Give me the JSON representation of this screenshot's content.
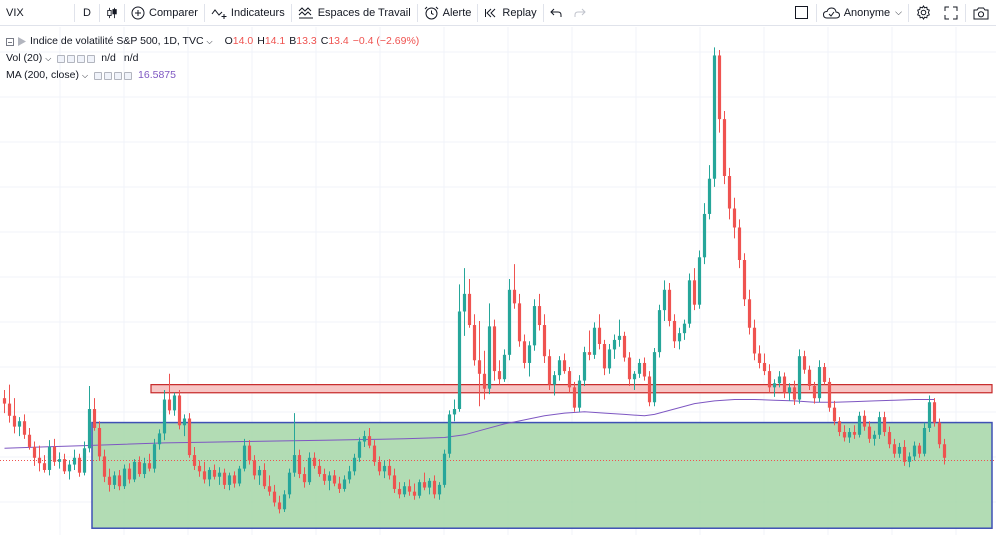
{
  "toolbar": {
    "symbol": "VIX",
    "interval": "D",
    "compare_label": "Comparer",
    "indicators_label": "Indicateurs",
    "workspaces_label": "Espaces de Travail",
    "alert_label": "Alerte",
    "replay_label": "Replay",
    "user_label": "Anonyme"
  },
  "legend": {
    "title": "Indice de volatilité S&P 500, 1D, TVC",
    "open_key": "O",
    "open_val": "14.0",
    "high_key": "H",
    "high_val": "14.1",
    "low_key": "B",
    "low_val": "13.3",
    "close_key": "C",
    "close_val": "13.4",
    "change": "−0.4 (−2.69%)",
    "vol_label": "Vol (20)",
    "vol_val1": "n/d",
    "vol_val2": "n/d",
    "ma_label": "MA (200, close)",
    "ma_val": "16.5875"
  },
  "colors": {
    "up": "#26a69a",
    "down": "#ef5350",
    "ma": "#7e57c2",
    "resistance_fill": "#f7c6c5",
    "resistance_stroke": "#c62828",
    "support_fill": "#a5d6a7",
    "support_stroke": "#3f51b5"
  },
  "chart_data": {
    "type": "candlestick",
    "symbol": "VIX",
    "ylim": [
      10.5,
      48
    ],
    "zones": {
      "resistance": [
        21.0,
        21.6
      ],
      "support": [
        11.0,
        18.8
      ]
    },
    "last_price_line": 16.0,
    "candles": [
      [
        20.6,
        21.2,
        19.5,
        20.2
      ],
      [
        20.2,
        21.6,
        18.8,
        19.3
      ],
      [
        19.3,
        20.6,
        18.0,
        18.5
      ],
      [
        18.5,
        19.2,
        17.8,
        18.9
      ],
      [
        18.9,
        19.4,
        17.6,
        17.9
      ],
      [
        17.9,
        18.4,
        16.8,
        17.0
      ],
      [
        17.0,
        17.4,
        15.6,
        16.2
      ],
      [
        16.2,
        17.1,
        15.2,
        15.8
      ],
      [
        15.8,
        16.4,
        15.1,
        15.3
      ],
      [
        15.3,
        17.5,
        14.9,
        17.0
      ],
      [
        17.0,
        17.6,
        15.6,
        15.9
      ],
      [
        15.9,
        16.6,
        15.4,
        16.1
      ],
      [
        16.1,
        16.5,
        15.0,
        15.2
      ],
      [
        15.2,
        16.0,
        14.6,
        15.7
      ],
      [
        15.7,
        16.8,
        15.3,
        16.2
      ],
      [
        16.2,
        16.5,
        14.8,
        15.1
      ],
      [
        15.1,
        17.4,
        14.9,
        16.9
      ],
      [
        16.9,
        21.5,
        16.6,
        19.8
      ],
      [
        19.8,
        20.6,
        18.2,
        18.4
      ],
      [
        18.4,
        18.9,
        16.0,
        16.3
      ],
      [
        16.3,
        16.8,
        14.4,
        14.8
      ],
      [
        14.8,
        15.4,
        13.7,
        14.2
      ],
      [
        14.2,
        15.2,
        13.9,
        14.9
      ],
      [
        14.9,
        15.3,
        13.8,
        14.1
      ],
      [
        14.1,
        15.7,
        13.9,
        15.4
      ],
      [
        15.4,
        15.8,
        14.3,
        14.6
      ],
      [
        14.6,
        16.1,
        14.4,
        15.9
      ],
      [
        15.9,
        16.3,
        14.8,
        15.0
      ],
      [
        15.0,
        16.2,
        14.7,
        15.8
      ],
      [
        15.8,
        16.5,
        15.2,
        15.4
      ],
      [
        15.4,
        17.6,
        15.1,
        17.2
      ],
      [
        17.2,
        18.3,
        16.8,
        18.0
      ],
      [
        18.0,
        21.2,
        17.5,
        20.5
      ],
      [
        20.5,
        22.4,
        19.4,
        19.7
      ],
      [
        19.7,
        21.0,
        19.3,
        20.8
      ],
      [
        20.8,
        21.2,
        18.3,
        18.6
      ],
      [
        18.6,
        19.4,
        17.8,
        19.1
      ],
      [
        19.1,
        19.5,
        16.2,
        16.4
      ],
      [
        16.4,
        17.0,
        15.3,
        15.6
      ],
      [
        15.6,
        16.0,
        14.8,
        15.2
      ],
      [
        15.2,
        15.9,
        14.3,
        14.6
      ],
      [
        14.6,
        15.5,
        14.1,
        15.3
      ],
      [
        15.3,
        15.7,
        14.6,
        14.8
      ],
      [
        14.8,
        15.5,
        14.2,
        15.1
      ],
      [
        15.1,
        15.4,
        13.9,
        14.2
      ],
      [
        14.2,
        15.1,
        13.8,
        14.9
      ],
      [
        14.9,
        15.2,
        14.0,
        14.3
      ],
      [
        14.3,
        15.6,
        14.1,
        15.4
      ],
      [
        15.4,
        17.6,
        15.2,
        17.1
      ],
      [
        17.1,
        17.5,
        15.7,
        16.0
      ],
      [
        16.0,
        16.4,
        14.6,
        14.9
      ],
      [
        14.9,
        15.6,
        14.2,
        15.3
      ],
      [
        15.3,
        15.8,
        13.9,
        14.1
      ],
      [
        14.1,
        14.9,
        13.4,
        13.7
      ],
      [
        13.7,
        14.2,
        12.6,
        12.9
      ],
      [
        12.9,
        13.4,
        12.1,
        12.4
      ],
      [
        12.4,
        13.8,
        12.2,
        13.5
      ],
      [
        13.5,
        15.4,
        13.2,
        15.1
      ],
      [
        15.1,
        19.5,
        14.8,
        16.4
      ],
      [
        16.4,
        16.8,
        14.7,
        15.0
      ],
      [
        15.0,
        15.5,
        14.0,
        14.4
      ],
      [
        14.4,
        16.6,
        14.2,
        16.2
      ],
      [
        16.2,
        16.6,
        15.4,
        15.6
      ],
      [
        15.6,
        16.1,
        14.8,
        15.0
      ],
      [
        15.0,
        15.4,
        14.2,
        14.5
      ],
      [
        14.5,
        15.2,
        13.8,
        14.9
      ],
      [
        14.9,
        15.3,
        14.1,
        14.3
      ],
      [
        14.3,
        14.8,
        13.6,
        13.9
      ],
      [
        13.9,
        14.9,
        13.7,
        14.6
      ],
      [
        14.6,
        15.6,
        14.3,
        15.2
      ],
      [
        15.2,
        16.5,
        14.9,
        16.2
      ],
      [
        16.2,
        17.7,
        15.9,
        17.4
      ],
      [
        17.4,
        18.2,
        17.0,
        17.8
      ],
      [
        17.8,
        18.4,
        16.9,
        17.1
      ],
      [
        17.1,
        17.5,
        15.6,
        15.9
      ],
      [
        15.9,
        16.3,
        14.9,
        15.2
      ],
      [
        15.2,
        16.0,
        14.7,
        15.6
      ],
      [
        15.6,
        16.1,
        14.6,
        14.9
      ],
      [
        14.9,
        15.4,
        13.6,
        13.9
      ],
      [
        13.9,
        14.4,
        13.2,
        13.5
      ],
      [
        13.5,
        14.4,
        13.3,
        14.1
      ],
      [
        14.1,
        14.6,
        13.4,
        13.7
      ],
      [
        13.7,
        14.3,
        13.1,
        13.4
      ],
      [
        13.4,
        14.6,
        13.2,
        14.4
      ],
      [
        14.4,
        15.1,
        13.8,
        14.0
      ],
      [
        14.0,
        14.7,
        13.5,
        14.5
      ],
      [
        14.5,
        14.9,
        13.2,
        13.5
      ],
      [
        13.5,
        14.4,
        13.1,
        14.2
      ],
      [
        14.2,
        16.8,
        14.0,
        16.5
      ],
      [
        16.5,
        19.7,
        16.2,
        19.4
      ],
      [
        19.4,
        20.5,
        18.9,
        19.8
      ],
      [
        19.8,
        29.0,
        19.6,
        27.0
      ],
      [
        27.0,
        30.2,
        25.2,
        28.3
      ],
      [
        28.3,
        29.4,
        25.8,
        26.0
      ],
      [
        26.0,
        26.8,
        23.0,
        23.4
      ],
      [
        23.4,
        26.3,
        20.0,
        22.4
      ],
      [
        22.4,
        24.1,
        20.5,
        21.3
      ],
      [
        21.3,
        27.6,
        20.9,
        25.9
      ],
      [
        25.9,
        26.4,
        21.9,
        22.6
      ],
      [
        22.6,
        23.4,
        21.6,
        22.0
      ],
      [
        22.0,
        24.2,
        21.8,
        23.8
      ],
      [
        23.8,
        29.4,
        23.4,
        28.6
      ],
      [
        28.6,
        30.5,
        27.2,
        27.6
      ],
      [
        27.6,
        28.3,
        24.4,
        24.8
      ],
      [
        24.8,
        25.3,
        22.8,
        23.2
      ],
      [
        23.2,
        24.8,
        22.2,
        24.5
      ],
      [
        24.5,
        27.9,
        24.1,
        27.4
      ],
      [
        27.4,
        28.3,
        25.6,
        26.0
      ],
      [
        26.0,
        26.8,
        23.2,
        23.7
      ],
      [
        23.7,
        24.2,
        21.2,
        21.6
      ],
      [
        21.6,
        22.6,
        20.8,
        22.3
      ],
      [
        22.3,
        23.7,
        21.9,
        23.4
      ],
      [
        23.4,
        23.9,
        22.4,
        22.6
      ],
      [
        22.6,
        22.9,
        21.0,
        21.4
      ],
      [
        21.4,
        21.8,
        19.6,
        19.9
      ],
      [
        19.9,
        22.3,
        19.6,
        21.9
      ],
      [
        21.9,
        24.4,
        21.5,
        24.0
      ],
      [
        24.0,
        25.6,
        23.4,
        23.8
      ],
      [
        23.8,
        26.2,
        23.5,
        25.8
      ],
      [
        25.8,
        26.8,
        24.2,
        24.6
      ],
      [
        24.6,
        24.9,
        22.3,
        22.8
      ],
      [
        22.8,
        24.6,
        22.4,
        24.2
      ],
      [
        24.2,
        25.3,
        23.5,
        24.9
      ],
      [
        24.9,
        26.4,
        24.4,
        25.2
      ],
      [
        25.2,
        25.5,
        23.3,
        23.6
      ],
      [
        23.6,
        24.0,
        21.5,
        22.0
      ],
      [
        22.0,
        22.6,
        21.2,
        22.4
      ],
      [
        22.4,
        23.5,
        22.1,
        23.2
      ],
      [
        23.2,
        23.6,
        21.9,
        22.2
      ],
      [
        22.2,
        22.6,
        20.0,
        20.3
      ],
      [
        20.3,
        24.3,
        20.0,
        24.0
      ],
      [
        24.0,
        27.5,
        23.6,
        27.1
      ],
      [
        27.1,
        29.3,
        26.3,
        28.6
      ],
      [
        28.6,
        29.1,
        25.9,
        26.3
      ],
      [
        26.3,
        26.8,
        24.3,
        24.8
      ],
      [
        24.8,
        25.8,
        24.2,
        25.4
      ],
      [
        25.4,
        26.4,
        24.9,
        26.1
      ],
      [
        26.1,
        29.8,
        25.8,
        29.3
      ],
      [
        29.3,
        30.2,
        27.1,
        27.5
      ],
      [
        27.5,
        31.5,
        27.2,
        31.0
      ],
      [
        31.0,
        35.0,
        30.5,
        34.2
      ],
      [
        34.2,
        37.8,
        33.8,
        36.8
      ],
      [
        36.8,
        46.5,
        36.2,
        45.9
      ],
      [
        45.9,
        46.3,
        40.2,
        41.2
      ],
      [
        41.2,
        41.8,
        36.4,
        37.0
      ],
      [
        37.0,
        37.6,
        33.8,
        34.6
      ],
      [
        34.6,
        35.4,
        32.4,
        33.2
      ],
      [
        33.2,
        33.8,
        30.2,
        30.8
      ],
      [
        30.8,
        31.3,
        27.4,
        27.9
      ],
      [
        27.9,
        28.6,
        25.3,
        25.8
      ],
      [
        25.8,
        26.4,
        23.4,
        23.9
      ],
      [
        23.9,
        24.5,
        22.8,
        23.2
      ],
      [
        23.2,
        23.9,
        22.3,
        22.6
      ],
      [
        22.6,
        23.1,
        21.0,
        21.4
      ],
      [
        21.4,
        22.0,
        20.7,
        21.7
      ],
      [
        21.7,
        22.6,
        21.4,
        22.2
      ],
      [
        22.2,
        22.5,
        20.6,
        21.0
      ],
      [
        21.0,
        21.7,
        20.4,
        21.4
      ],
      [
        21.4,
        21.9,
        20.1,
        20.5
      ],
      [
        20.5,
        24.2,
        20.2,
        23.7
      ],
      [
        23.7,
        24.1,
        22.4,
        22.7
      ],
      [
        22.7,
        23.0,
        21.2,
        21.5
      ],
      [
        21.5,
        21.8,
        20.2,
        20.6
      ],
      [
        20.6,
        23.4,
        20.3,
        22.9
      ],
      [
        22.9,
        23.2,
        21.6,
        21.8
      ],
      [
        21.8,
        22.1,
        19.6,
        19.9
      ],
      [
        19.9,
        20.4,
        18.6,
        18.9
      ],
      [
        18.9,
        19.2,
        17.8,
        18.1
      ],
      [
        18.1,
        18.6,
        17.4,
        17.7
      ],
      [
        17.7,
        18.4,
        17.3,
        18.1
      ],
      [
        18.1,
        18.6,
        17.6,
        17.9
      ],
      [
        17.9,
        19.6,
        17.7,
        19.3
      ],
      [
        19.3,
        19.7,
        18.2,
        18.5
      ],
      [
        18.5,
        18.9,
        17.3,
        17.6
      ],
      [
        17.6,
        18.2,
        17.1,
        17.9
      ],
      [
        17.9,
        19.6,
        17.6,
        19.2
      ],
      [
        19.2,
        19.6,
        17.8,
        18.1
      ],
      [
        18.1,
        18.5,
        16.9,
        17.2
      ],
      [
        17.2,
        17.6,
        16.2,
        16.5
      ],
      [
        16.5,
        17.3,
        16.2,
        17.0
      ],
      [
        17.0,
        17.5,
        15.6,
        15.9
      ],
      [
        15.9,
        16.6,
        15.5,
        16.3
      ],
      [
        16.3,
        17.4,
        16.0,
        17.1
      ],
      [
        17.1,
        17.3,
        16.2,
        16.5
      ],
      [
        16.5,
        18.8,
        16.3,
        18.4
      ],
      [
        18.4,
        20.8,
        18.1,
        20.3
      ],
      [
        20.3,
        20.6,
        18.5,
        18.8
      ],
      [
        18.8,
        19.1,
        16.9,
        17.2
      ],
      [
        17.2,
        17.6,
        15.7,
        16.2
      ]
    ],
    "ma": [
      [
        0,
        16.9
      ],
      [
        8,
        17.0
      ],
      [
        16,
        17.1
      ],
      [
        24,
        17.2
      ],
      [
        32,
        17.3
      ],
      [
        40,
        17.35
      ],
      [
        48,
        17.4
      ],
      [
        56,
        17.45
      ],
      [
        64,
        17.5
      ],
      [
        72,
        17.55
      ],
      [
        80,
        17.6
      ],
      [
        88,
        17.7
      ],
      [
        92,
        17.9
      ],
      [
        96,
        18.3
      ],
      [
        100,
        18.7
      ],
      [
        104,
        19.0
      ],
      [
        108,
        19.3
      ],
      [
        112,
        19.5
      ],
      [
        116,
        19.6
      ],
      [
        120,
        19.5
      ],
      [
        124,
        19.4
      ],
      [
        128,
        19.3
      ],
      [
        130,
        19.4
      ],
      [
        134,
        19.8
      ],
      [
        138,
        20.2
      ],
      [
        142,
        20.4
      ],
      [
        146,
        20.5
      ],
      [
        150,
        20.5
      ],
      [
        154,
        20.45
      ],
      [
        158,
        20.4
      ],
      [
        162,
        20.3
      ],
      [
        166,
        20.3
      ],
      [
        170,
        20.35
      ],
      [
        174,
        20.4
      ],
      [
        178,
        20.45
      ],
      [
        182,
        20.5
      ],
      [
        186,
        20.5
      ]
    ]
  }
}
